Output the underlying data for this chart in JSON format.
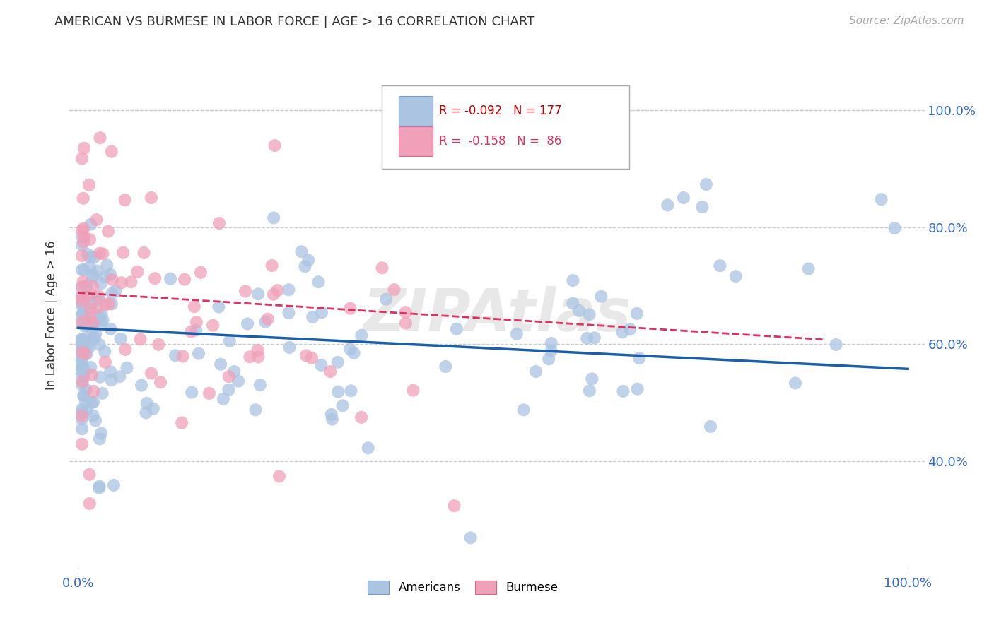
{
  "title": "AMERICAN VS BURMESE IN LABOR FORCE | AGE > 16 CORRELATION CHART",
  "source": "Source: ZipAtlas.com",
  "ylabel": "In Labor Force | Age > 16",
  "ytick_labels": [
    "100.0%",
    "80.0%",
    "60.0%",
    "40.0%"
  ],
  "ytick_values": [
    1.0,
    0.8,
    0.6,
    0.4
  ],
  "xlim": [
    -0.01,
    1.02
  ],
  "ylim": [
    0.22,
    1.08
  ],
  "legend_r_american": "-0.092",
  "legend_n_american": "177",
  "legend_r_burmese": "-0.158",
  "legend_n_burmese": "86",
  "color_american": "#aac4e2",
  "color_burmese": "#f0a0b8",
  "line_color_american": "#1a5faa",
  "line_color_burmese": "#e03060",
  "watermark": "ZIPAtlas",
  "background_color": "#ffffff",
  "grid_color": "#cccccc",
  "am_trend_x0": 0.0,
  "am_trend_y0": 0.628,
  "am_trend_x1": 1.0,
  "am_trend_y1": 0.558,
  "bu_trend_x0": 0.0,
  "bu_trend_y0": 0.688,
  "bu_trend_x1": 0.9,
  "bu_trend_y1": 0.608,
  "title_fontsize": 13,
  "source_fontsize": 11,
  "tick_label_fontsize": 13,
  "ylabel_fontsize": 12,
  "legend_fontsize": 12,
  "watermark_fontsize": 60
}
